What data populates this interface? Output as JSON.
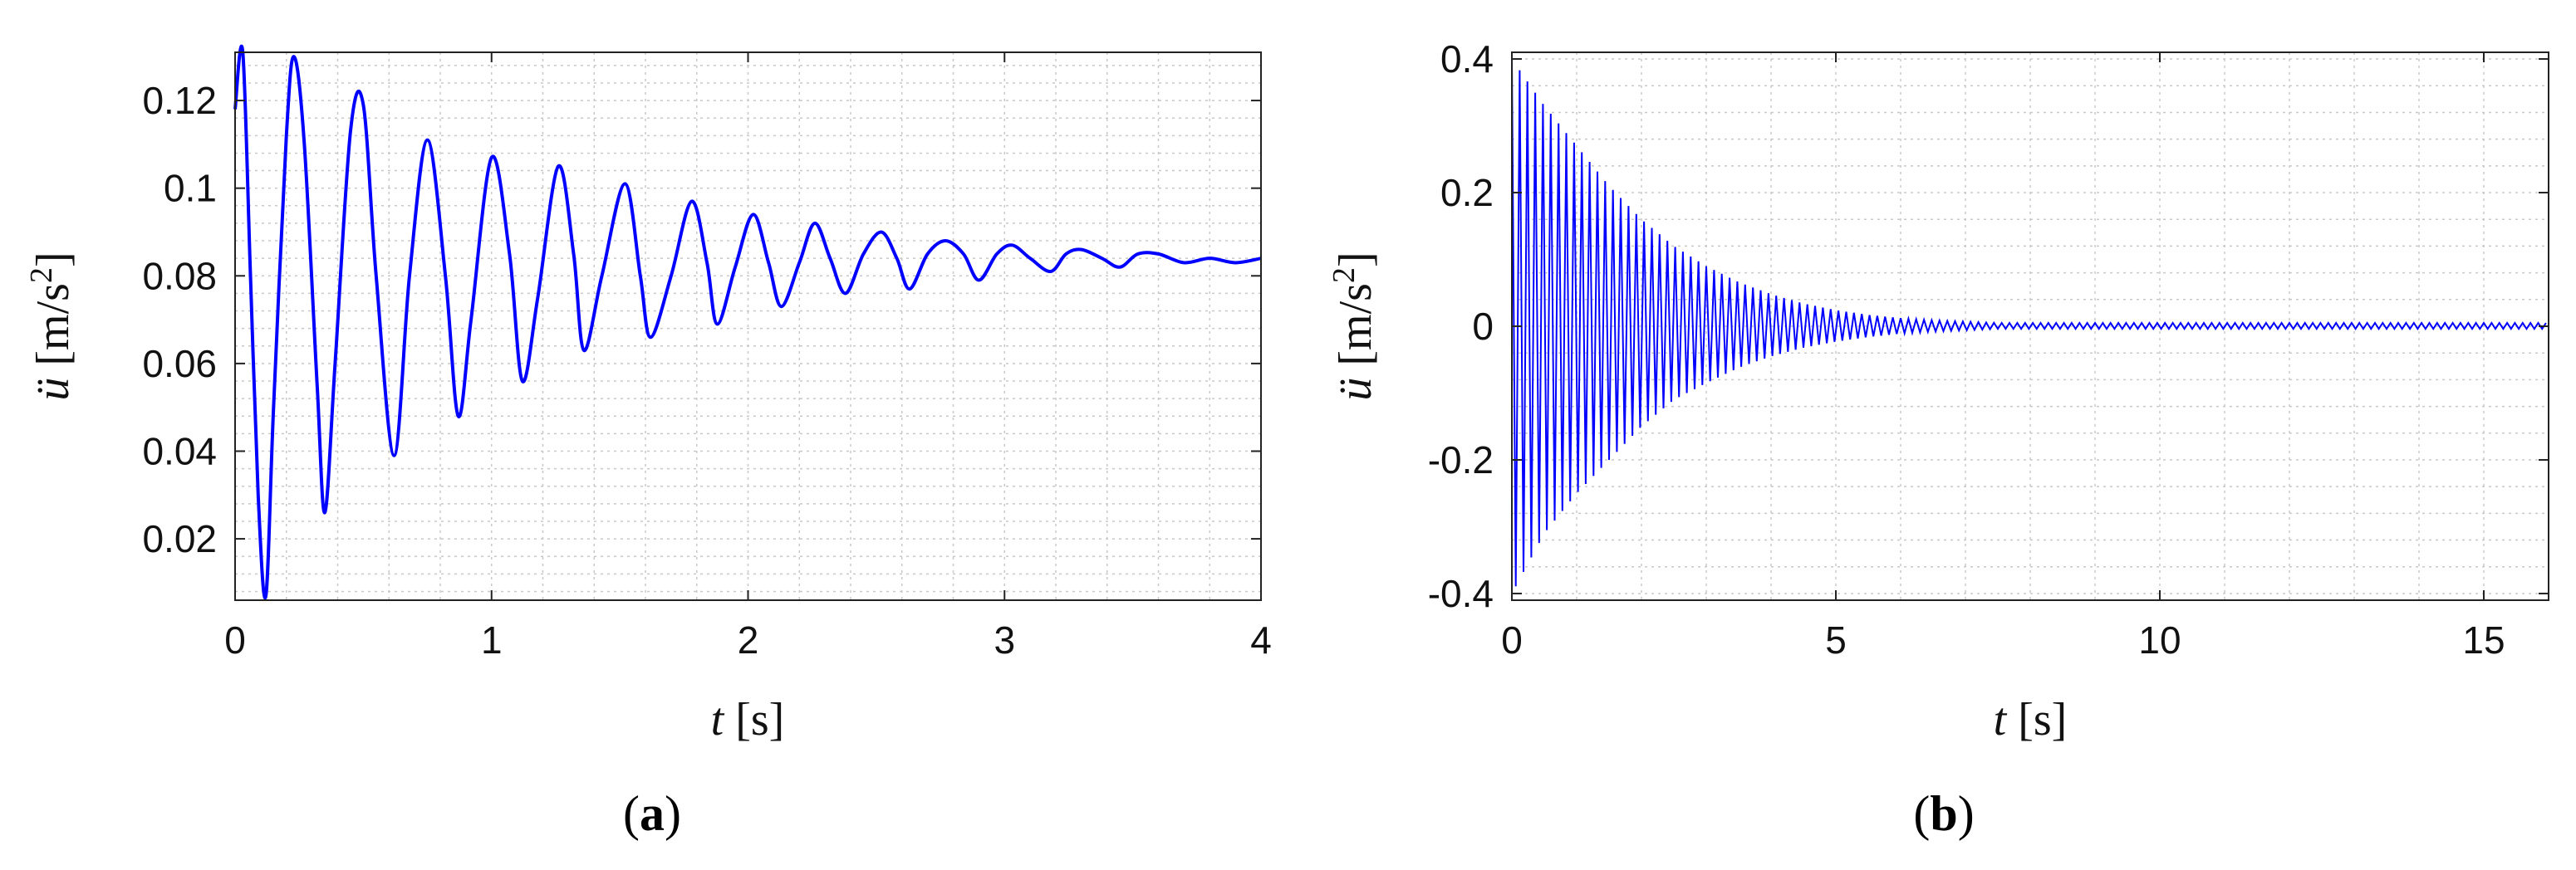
{
  "chart_data": [
    {
      "type": "line",
      "panel_label": "(a)",
      "panel_letter": "a",
      "xlabel_var": "t",
      "xlabel_unit": "[s]",
      "ylabel_var": "ü",
      "ylabel_unit_base": "[m/s",
      "ylabel_unit_exp": "2",
      "ylabel_unit_close": "]",
      "xlim": [
        0,
        4
      ],
      "ylim": [
        0.006,
        0.131
      ],
      "xticks": [
        0,
        1,
        2,
        3,
        4
      ],
      "xtick_labels": [
        "0",
        "1",
        "2",
        "3",
        "4"
      ],
      "yticks": [
        0.02,
        0.04,
        0.06,
        0.08,
        0.1,
        0.12
      ],
      "ytick_labels": [
        "0.02",
        "0.04",
        "0.06",
        "0.08",
        "0.1",
        "0.12"
      ],
      "grid": true,
      "line_color": "#0000ff",
      "series": [
        {
          "x": [
            0,
            0.03,
            0.06,
            0.09,
            0.12,
            0.15,
            0.2,
            0.23,
            0.27,
            0.32,
            0.35,
            0.39,
            0.45,
            0.5,
            0.55,
            0.62,
            0.68,
            0.75,
            0.82,
            0.87,
            0.92,
            1.0,
            1.07,
            1.12,
            1.18,
            1.26,
            1.32,
            1.36,
            1.43,
            1.52,
            1.58,
            1.62,
            1.7,
            1.78,
            1.84,
            1.88,
            1.95,
            2.02,
            2.08,
            2.13,
            2.2,
            2.26,
            2.32,
            2.38,
            2.45,
            2.52,
            2.58,
            2.63,
            2.7,
            2.77,
            2.84,
            2.9,
            2.97,
            3.03,
            3.1,
            3.18,
            3.24,
            3.3,
            3.38,
            3.45,
            3.52,
            3.6,
            3.7,
            3.8,
            3.9,
            4.0
          ],
          "y": [
            0.118,
            0.131,
            0.08,
            0.03,
            0.007,
            0.05,
            0.112,
            0.13,
            0.11,
            0.055,
            0.026,
            0.06,
            0.113,
            0.119,
            0.08,
            0.039,
            0.08,
            0.111,
            0.08,
            0.048,
            0.07,
            0.107,
            0.085,
            0.056,
            0.075,
            0.105,
            0.085,
            0.063,
            0.08,
            0.101,
            0.08,
            0.066,
            0.08,
            0.097,
            0.083,
            0.069,
            0.082,
            0.094,
            0.083,
            0.073,
            0.083,
            0.092,
            0.084,
            0.076,
            0.085,
            0.09,
            0.084,
            0.077,
            0.085,
            0.088,
            0.085,
            0.079,
            0.085,
            0.087,
            0.084,
            0.081,
            0.085,
            0.086,
            0.084,
            0.082,
            0.085,
            0.085,
            0.083,
            0.084,
            0.083,
            0.084
          ]
        }
      ]
    },
    {
      "type": "line",
      "panel_label": "(b)",
      "panel_letter": "b",
      "xlabel_var": "t",
      "xlabel_unit": "[s]",
      "ylabel_var": "ü",
      "ylabel_unit_base": "[m/s",
      "ylabel_unit_exp": "2",
      "ylabel_unit_close": "]",
      "xlim": [
        0,
        16
      ],
      "ylim": [
        -0.41,
        0.41
      ],
      "xticks": [
        0,
        5,
        10,
        15
      ],
      "xtick_labels": [
        "0",
        "5",
        "10",
        "15"
      ],
      "yticks": [
        -0.4,
        -0.2,
        0,
        0.2,
        0.4
      ],
      "ytick_labels": [
        "-0.4",
        "-0.2",
        "0",
        "0.2",
        "0.4"
      ],
      "grid": true,
      "line_color": "#0000ff",
      "series": [
        {
          "envelope_upper": {
            "x": [
              0,
              0.5,
              1,
              1.5,
              2,
              2.5,
              3,
              3.5,
              4,
              4.5,
              5,
              5.5,
              6,
              6.5,
              7,
              7.5,
              8,
              10,
              12,
              14,
              16
            ],
            "y": [
              0.4,
              0.33,
              0.27,
              0.21,
              0.16,
              0.12,
              0.09,
              0.066,
              0.048,
              0.034,
              0.024,
              0.017,
              0.012,
              0.009,
              0.007,
              0.005,
              0.005,
              0.005,
              0.005,
              0.005,
              0.005
            ]
          },
          "envelope_lower": {
            "x": [
              0,
              0.5,
              1,
              1.5,
              2,
              2.5,
              3,
              3.5,
              4,
              4.5,
              5,
              5.5,
              6,
              6.5,
              7,
              7.5,
              8,
              10,
              12,
              14,
              16
            ],
            "y": [
              -0.4,
              -0.31,
              -0.25,
              -0.2,
              -0.15,
              -0.11,
              -0.085,
              -0.062,
              -0.045,
              -0.032,
              -0.023,
              -0.016,
              -0.011,
              -0.008,
              -0.006,
              -0.004,
              -0.004,
              -0.004,
              -0.004,
              -0.004,
              -0.004
            ]
          },
          "oscillation_period_s": 0.12
        }
      ]
    }
  ]
}
